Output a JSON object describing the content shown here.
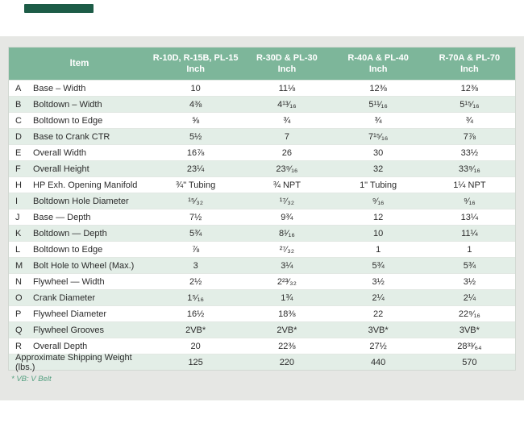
{
  "page": {
    "background_color": "#ffffff",
    "panel_color": "#e6e7e4",
    "header_green": "#7db69a",
    "row_tint_green": "#e3eee7",
    "dark_green_bar_color": "#1d5c47",
    "footnote_color": "#55a081"
  },
  "table": {
    "header": {
      "item_label": "Item",
      "columns": [
        {
          "models": "R-10D, R-15B, PL-15",
          "unit": "Inch"
        },
        {
          "models": "R-30D & PL-30",
          "unit": "Inch"
        },
        {
          "models": "R-40A & PL-40",
          "unit": "Inch"
        },
        {
          "models": "R-70A & PL-70",
          "unit": "Inch"
        }
      ]
    },
    "rows": [
      {
        "letter": "A",
        "item": "Base – Width",
        "values": [
          "10",
          "11⅛",
          "12⅜",
          "12⅜"
        ]
      },
      {
        "letter": "B",
        "item": "Boltdown – Width",
        "values": [
          "4⅜",
          "4¹³⁄₁₆",
          "5¹¹⁄₁₆",
          "5¹⁵⁄₁₆"
        ]
      },
      {
        "letter": "C",
        "item": "Boltdown to Edge",
        "values": [
          "⅝",
          "¾",
          "¾",
          "¾"
        ]
      },
      {
        "letter": "D",
        "item": "Base to Crank CTR",
        "values": [
          "5½",
          "7",
          "7¹⁵⁄₁₆",
          "7⅞"
        ]
      },
      {
        "letter": "E",
        "item": "Overall Width",
        "values": [
          "16⅞",
          "26",
          "30",
          "33½"
        ]
      },
      {
        "letter": "F",
        "item": "Overall Height",
        "values": [
          "23¼",
          "23⁹⁄₁₆",
          "32",
          "33⁹⁄₁₆"
        ]
      },
      {
        "letter": "H",
        "item": "HP Exh. Opening Manifold",
        "values": [
          "¾\" Tubing",
          "¾ NPT",
          "1\" Tubing",
          "1¼ NPT"
        ]
      },
      {
        "letter": "I",
        "item": "Boltdown Hole Diameter",
        "values": [
          "¹⁵⁄₃₂",
          "¹⁷⁄₃₂",
          "⁹⁄₁₆",
          "⁹⁄₁₆"
        ]
      },
      {
        "letter": "J",
        "item": "Base — Depth",
        "values": [
          "7½",
          "9¾",
          "12",
          "13¼"
        ]
      },
      {
        "letter": "K",
        "item": "Boltdown — Depth",
        "values": [
          "5¾",
          "8¹⁄₁₆",
          "10",
          "11¼"
        ]
      },
      {
        "letter": "L",
        "item": "Boltdown to Edge",
        "values": [
          "⅞",
          "²⁷⁄₃₂",
          "1",
          "1"
        ]
      },
      {
        "letter": "M",
        "item": "Bolt Hole to Wheel (Max.)",
        "values": [
          "3",
          "3¼",
          "5¾",
          "5¾"
        ]
      },
      {
        "letter": "N",
        "item": "Flywheel — Width",
        "values": [
          "2½",
          "2²³⁄₃₂",
          "3½",
          "3½"
        ]
      },
      {
        "letter": "O",
        "item": "Crank Diameter",
        "values": [
          "1⁵⁄₁₆",
          "1¾",
          "2¼",
          "2¼"
        ]
      },
      {
        "letter": "P",
        "item": "Flywheel Diameter",
        "values": [
          "16½",
          "18⅜",
          "22",
          "22⁹⁄₁₆"
        ]
      },
      {
        "letter": "Q",
        "item": "Flywheel Grooves",
        "values": [
          "2VB*",
          "2VB*",
          "3VB*",
          "3VB*"
        ]
      },
      {
        "letter": "R",
        "item": "Overall Depth",
        "values": [
          "20",
          "22⅜",
          "27½",
          "28³³⁄₆₄"
        ]
      }
    ],
    "footer_row": {
      "label": "Approximate Shipping Weight (lbs.)",
      "values": [
        "125",
        "220",
        "440",
        "570"
      ]
    }
  },
  "footnote": "* VB: V Belt"
}
